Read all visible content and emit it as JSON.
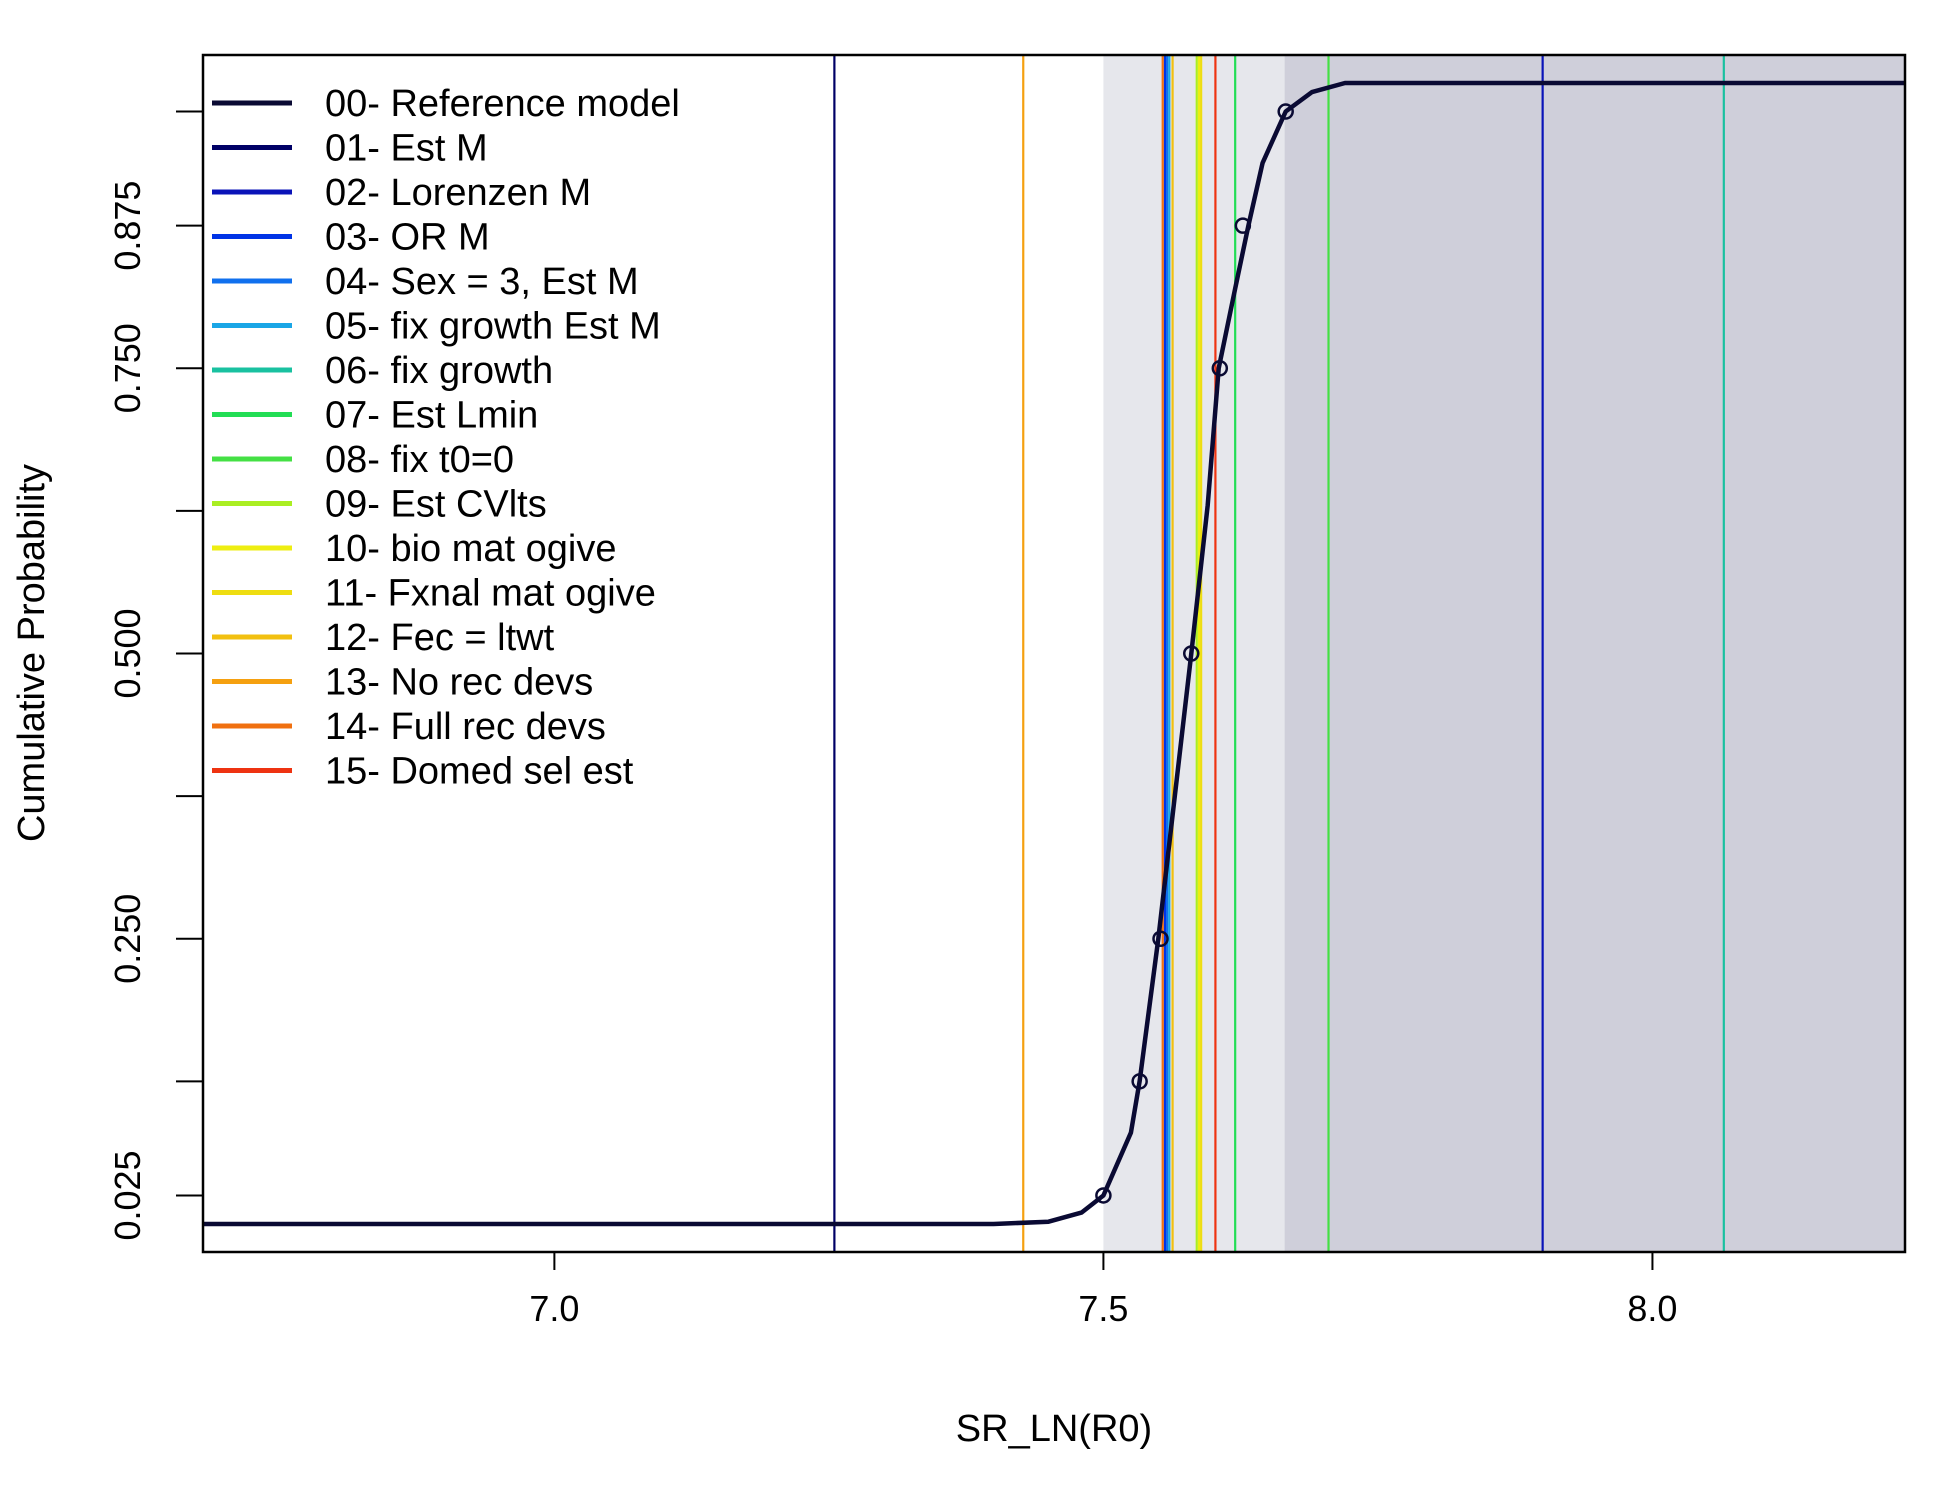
{
  "chart_data": {
    "type": "line",
    "title": "",
    "xlabel": "SR_LN(R0)",
    "ylabel": "Cumulative Probability",
    "xlim": [
      6.68,
      8.23
    ],
    "ylim": [
      0.0,
      1.0
    ],
    "x_ticks": [
      7.0,
      7.5,
      8.0
    ],
    "x_tick_labels": [
      "7.0",
      "7.5",
      "8.0"
    ],
    "y_ticks": [
      0.025,
      0.125,
      0.25,
      0.375,
      0.5,
      0.625,
      0.75,
      0.875,
      0.975
    ],
    "y_tick_labels": [
      "0.025",
      "",
      "0.250",
      "",
      "0.500",
      "",
      "0.750",
      "0.875",
      ""
    ],
    "grid": false,
    "legend_position": "top-left",
    "shaded_intervals": [
      {
        "from": 7.5,
        "to": 7.665,
        "color": "#e6e7ec"
      },
      {
        "from": 7.665,
        "to": 8.23,
        "color": "#cfcfda"
      }
    ],
    "cdf_curve": {
      "name": "00- Reference model",
      "color": "#0a0a33",
      "x": [
        6.68,
        7.4,
        7.45,
        7.48,
        7.5,
        7.525,
        7.533,
        7.55,
        7.565,
        7.58,
        7.595,
        7.605,
        7.62,
        7.632,
        7.645,
        7.666,
        7.69,
        7.72,
        8.23
      ],
      "y": [
        0.0,
        0.0,
        0.002,
        0.01,
        0.025,
        0.08,
        0.125,
        0.25,
        0.375,
        0.5,
        0.63,
        0.75,
        0.82,
        0.875,
        0.93,
        0.975,
        0.992,
        1.0,
        1.0
      ]
    },
    "quantile_points": {
      "x": [
        7.5,
        7.533,
        7.552,
        7.58,
        7.606,
        7.627,
        7.666
      ],
      "y": [
        0.025,
        0.125,
        0.25,
        0.5,
        0.75,
        0.875,
        0.975
      ]
    },
    "series": [
      {
        "name": "00- Reference model",
        "color": "#0a0a33",
        "x": 7.58
      },
      {
        "name": "01- Est M",
        "color": "#000066",
        "x": 7.255
      },
      {
        "name": "02- Lorenzen M",
        "color": "#0a13b8",
        "x": 7.9
      },
      {
        "name": "03- OR M",
        "color": "#0033e6",
        "x": 7.556
      },
      {
        "name": "04- Sex = 3, Est M",
        "color": "#1070ee",
        "x": 7.558
      },
      {
        "name": "05- fix growth Est M",
        "color": "#1aa6e6",
        "x": 7.56
      },
      {
        "name": "06- fix growth",
        "color": "#19c1a0",
        "x": 8.065
      },
      {
        "name": "07- Est Lmin",
        "color": "#22dd55",
        "x": 7.62
      },
      {
        "name": "08- fix t0=0",
        "color": "#44e044",
        "x": 7.705
      },
      {
        "name": "09- Est CVlts",
        "color": "#aaee22",
        "x": 7.585
      },
      {
        "name": "10- bio mat ogive",
        "color": "#eeee11",
        "x": 7.587
      },
      {
        "name": "11- Fxnal mat ogive",
        "color": "#eedd11",
        "x": 7.589
      },
      {
        "name": "12- Fec = ltwt",
        "color": "#f2c010",
        "x": 7.563
      },
      {
        "name": "13- No rec devs",
        "color": "#f5a010",
        "x": 7.427
      },
      {
        "name": "14- Full rec devs",
        "color": "#f07010",
        "x": 7.554
      },
      {
        "name": "15- Domed sel est",
        "color": "#ee3311",
        "x": 7.602
      }
    ]
  }
}
